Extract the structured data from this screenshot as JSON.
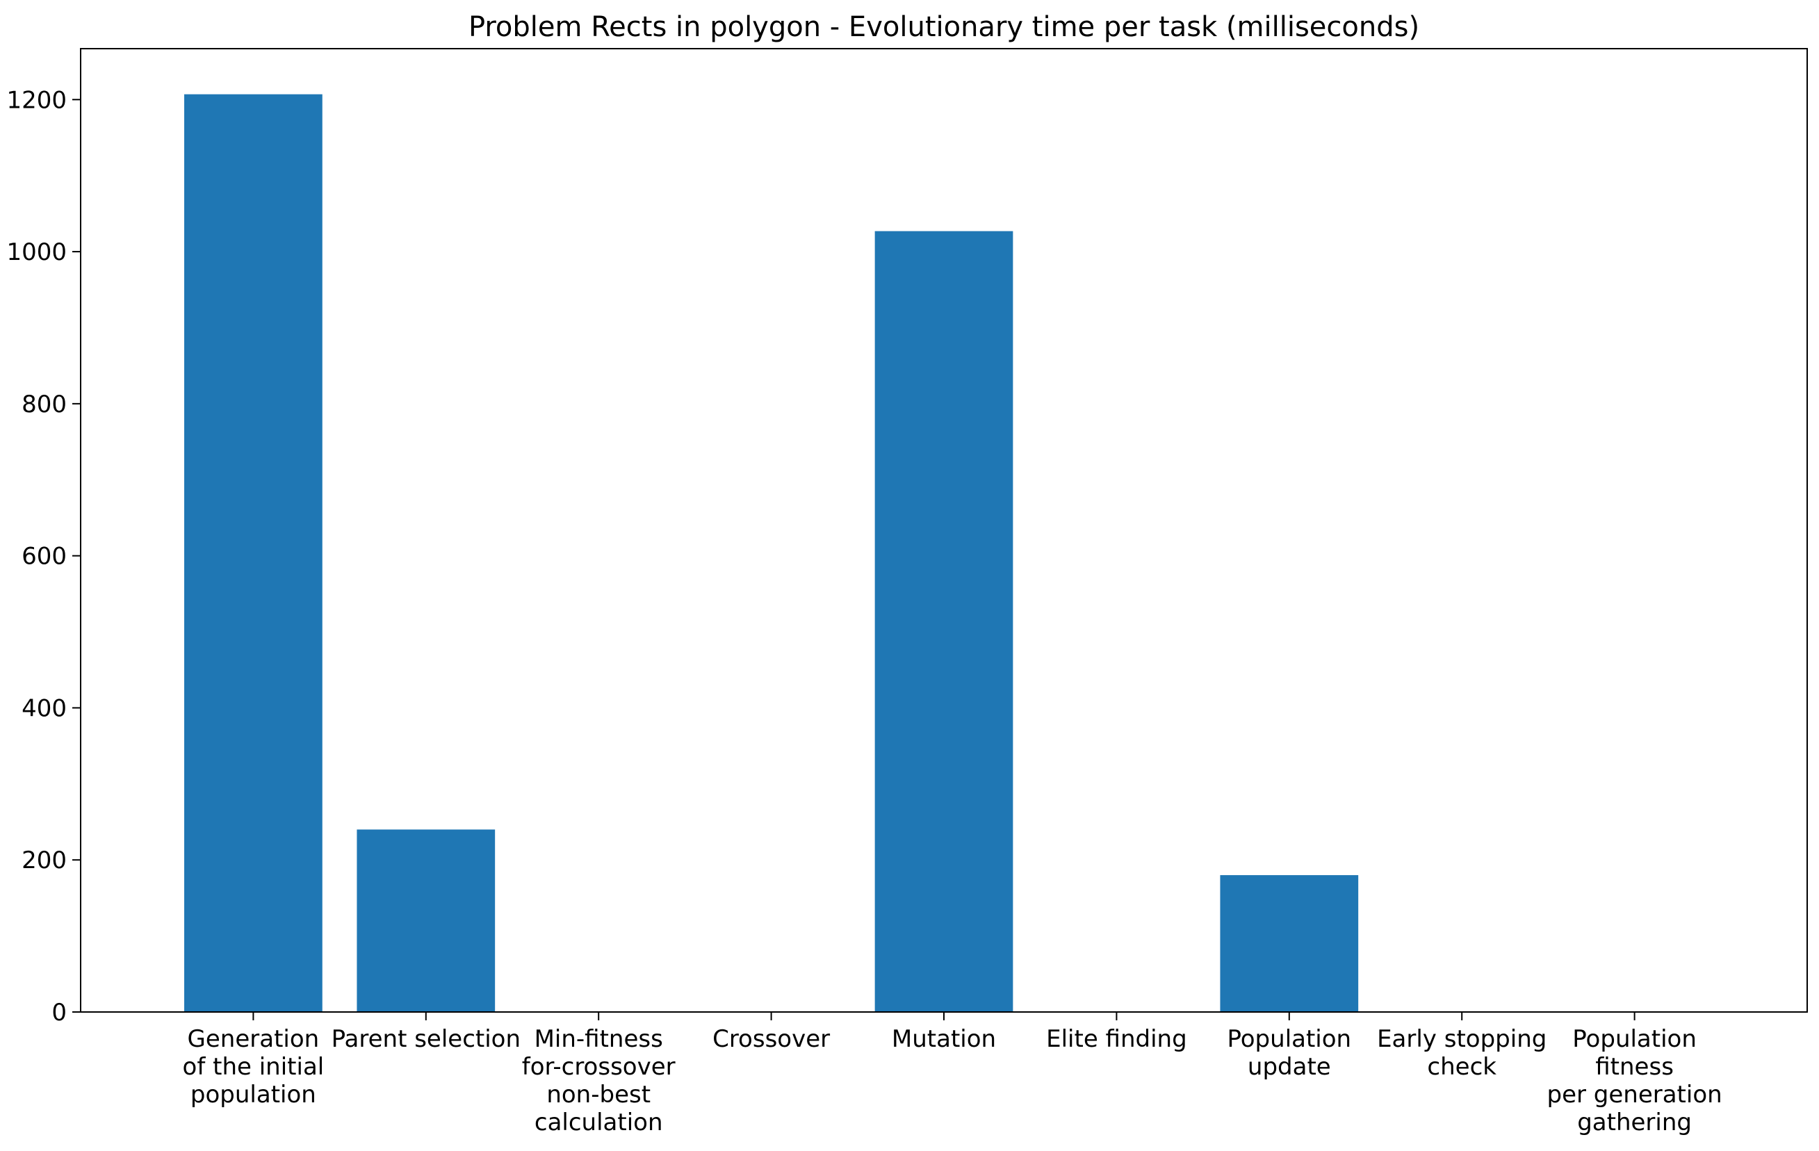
{
  "chart_data": {
    "type": "bar",
    "title": "Problem Rects in polygon - Evolutionary time per task (milliseconds)",
    "xlabel": "",
    "ylabel": "",
    "categories": [
      "Generation\nof the initial\npopulation",
      "Parent selection",
      "Min-fitness\nfor-crossover\nnon-best\ncalculation",
      "Crossover",
      "Mutation",
      "Elite finding",
      "Population\nupdate",
      "Early stopping\ncheck",
      "Population\nfitness\nper generation\ngathering"
    ],
    "values": [
      1207,
      240,
      0,
      0,
      1027,
      0,
      180,
      0,
      0
    ],
    "ylim": [
      0,
      1267
    ],
    "yticks": [
      0,
      200,
      400,
      600,
      800,
      1000,
      1200
    ],
    "grid": false,
    "bar_color": "#1f77b4"
  }
}
